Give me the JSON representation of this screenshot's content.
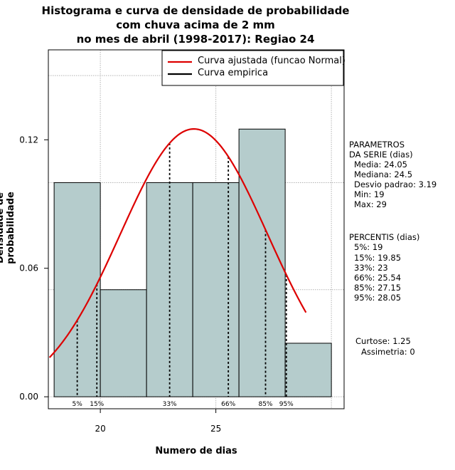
{
  "chart_data": {
    "type": "histogram",
    "title_lines": [
      "Histograma e curva de densidade de probabilidade",
      "com chuva acima de 2 mm",
      "no mes de abril (1998-2017): Regiao 24"
    ],
    "xlabel": "Numero de dias",
    "ylabel": "Densidade de probabilidade",
    "xlim": [
      17.75,
      30.55
    ],
    "ylim": [
      -0.0056,
      0.162
    ],
    "x_ticks": [
      20,
      25
    ],
    "y_ticks": [
      0.0,
      0.06,
      0.12
    ],
    "y_tick_labels": [
      "0.00",
      "0.06",
      "0.12"
    ],
    "grid_y": [
      0.0,
      0.05,
      0.1,
      0.15
    ],
    "grid_x": [
      20,
      25,
      30
    ],
    "bar_color": "#b5cccc",
    "bins": [
      {
        "start": 18,
        "end": 20,
        "density": 0.1
      },
      {
        "start": 20,
        "end": 22,
        "density": 0.05
      },
      {
        "start": 22,
        "end": 24,
        "density": 0.1
      },
      {
        "start": 24,
        "end": 26,
        "density": 0.1
      },
      {
        "start": 26,
        "end": 28,
        "density": 0.125
      },
      {
        "start": 28,
        "end": 30,
        "density": 0.025
      }
    ],
    "normal_curve": {
      "mean": 24.05,
      "sd": 3.19,
      "x_from": 17.8,
      "x_to": 28.9,
      "color": "#dd0000"
    },
    "percentiles": [
      {
        "label": "5%",
        "x": 19
      },
      {
        "label": "15%",
        "x": 19.85
      },
      {
        "label": "33%",
        "x": 23
      },
      {
        "label": "66%",
        "x": 25.54
      },
      {
        "label": "85%",
        "x": 27.15
      },
      {
        "label": "95%",
        "x": 28.05
      }
    ],
    "legend": {
      "position": "top-right",
      "items": [
        {
          "label": "Curva ajustada (funcao Normal)",
          "color": "#dd0000"
        },
        {
          "label": "Curva empirica",
          "color": "#000000"
        }
      ]
    }
  },
  "side_panel": {
    "params_title": [
      "PARAMETROS",
      "DA SERIE (dias)"
    ],
    "params": [
      "Media: 24.05",
      "Mediana: 24.5",
      "Desvio padrao: 3.19",
      "Min: 19",
      "Max: 29"
    ],
    "perc_title": "PERCENTIS (dias)",
    "perc": [
      "5%: 19",
      "15%: 19.85",
      "33%: 23",
      "66%: 25.54",
      "85%: 27.15",
      "95%: 28.05"
    ],
    "curtose": "Curtose: 1.25",
    "assimetria": "Assimetria: 0"
  }
}
